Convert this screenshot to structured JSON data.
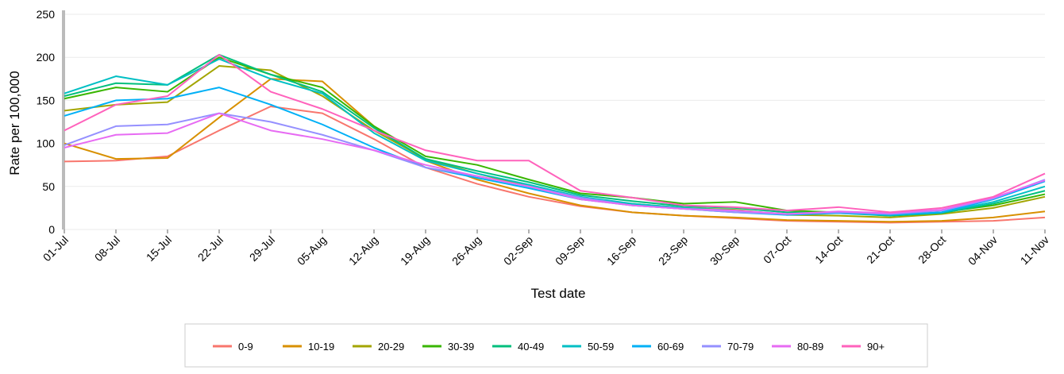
{
  "chart_data": {
    "type": "line",
    "x_label": "Test date",
    "y_label": "Rate per 100,000",
    "categories": [
      "01-Jul",
      "08-Jul",
      "15-Jul",
      "22-Jul",
      "29-Jul",
      "05-Aug",
      "12-Aug",
      "19-Aug",
      "26-Aug",
      "02-Sep",
      "09-Sep",
      "16-Sep",
      "23-Sep",
      "30-Sep",
      "07-Oct",
      "14-Oct",
      "21-Oct",
      "28-Oct",
      "04-Nov",
      "11-Nov"
    ],
    "ylim": [
      0,
      250
    ],
    "yticks": [
      0,
      50,
      100,
      150,
      200,
      250
    ],
    "grid": true,
    "series": [
      {
        "name": "0-9",
        "color": "#f8766d",
        "values": [
          79,
          80,
          85,
          115,
          143,
          135,
          105,
          72,
          53,
          38,
          27,
          20,
          16,
          13,
          10,
          9,
          8,
          9,
          10,
          14
        ]
      },
      {
        "name": "10-19",
        "color": "#d89000",
        "values": [
          100,
          82,
          83,
          130,
          175,
          172,
          120,
          80,
          58,
          42,
          28,
          20,
          16,
          14,
          11,
          10,
          9,
          10,
          14,
          21
        ]
      },
      {
        "name": "20-29",
        "color": "#a3a500",
        "values": [
          138,
          145,
          148,
          190,
          185,
          155,
          115,
          82,
          65,
          50,
          35,
          30,
          25,
          23,
          17,
          16,
          14,
          18,
          25,
          38
        ]
      },
      {
        "name": "30-39",
        "color": "#39b600",
        "values": [
          152,
          165,
          160,
          200,
          180,
          165,
          120,
          85,
          75,
          58,
          42,
          37,
          30,
          32,
          22,
          20,
          16,
          20,
          28,
          41
        ]
      },
      {
        "name": "40-49",
        "color": "#00bf7d",
        "values": [
          155,
          170,
          168,
          203,
          180,
          160,
          118,
          82,
          68,
          55,
          40,
          33,
          27,
          25,
          20,
          19,
          16,
          19,
          30,
          45
        ]
      },
      {
        "name": "50-59",
        "color": "#00bfc4",
        "values": [
          158,
          178,
          168,
          198,
          175,
          158,
          112,
          80,
          65,
          52,
          38,
          30,
          25,
          22,
          18,
          20,
          17,
          20,
          32,
          50
        ]
      },
      {
        "name": "60-69",
        "color": "#00b0f6",
        "values": [
          132,
          150,
          152,
          165,
          145,
          122,
          95,
          72,
          60,
          48,
          35,
          28,
          24,
          20,
          17,
          19,
          17,
          20,
          35,
          56
        ]
      },
      {
        "name": "70-79",
        "color": "#9590ff",
        "values": [
          98,
          120,
          122,
          135,
          125,
          110,
          92,
          72,
          62,
          50,
          37,
          28,
          24,
          20,
          18,
          20,
          18,
          22,
          36,
          58
        ]
      },
      {
        "name": "80-89",
        "color": "#e76bf3",
        "values": [
          95,
          110,
          112,
          135,
          115,
          105,
          92,
          75,
          62,
          50,
          35,
          28,
          24,
          22,
          18,
          21,
          19,
          23,
          37,
          57
        ]
      },
      {
        "name": "90+",
        "color": "#ff62bc",
        "values": [
          115,
          145,
          155,
          203,
          160,
          140,
          115,
          92,
          80,
          80,
          45,
          37,
          28,
          26,
          22,
          26,
          20,
          25,
          38,
          65
        ]
      }
    ]
  }
}
